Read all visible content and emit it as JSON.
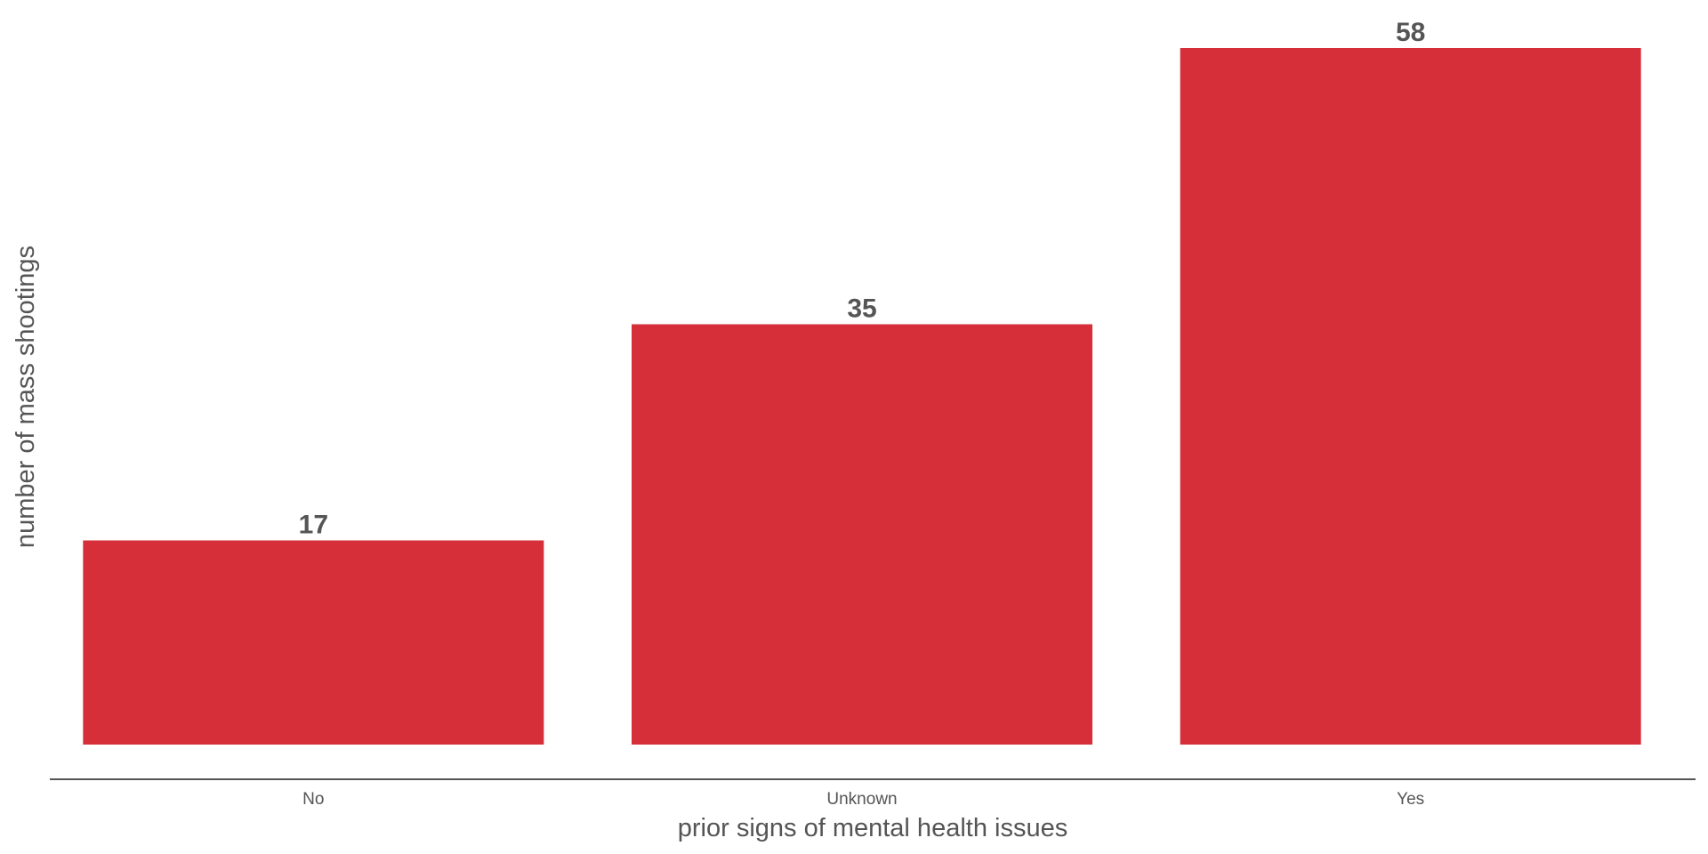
{
  "chart_data": {
    "type": "bar",
    "categories": [
      "No",
      "Unknown",
      "Yes"
    ],
    "values": [
      17,
      35,
      58
    ],
    "data_labels": [
      "17",
      "35",
      "58"
    ],
    "title": "",
    "xlabel": "prior signs of mental health issues",
    "ylabel": "number of mass shootings",
    "ylim": [
      0,
      58
    ],
    "grid": false,
    "legend": "none",
    "colors": {
      "bar": "#d62f39",
      "text": "#555555",
      "axis": "#555555"
    }
  }
}
